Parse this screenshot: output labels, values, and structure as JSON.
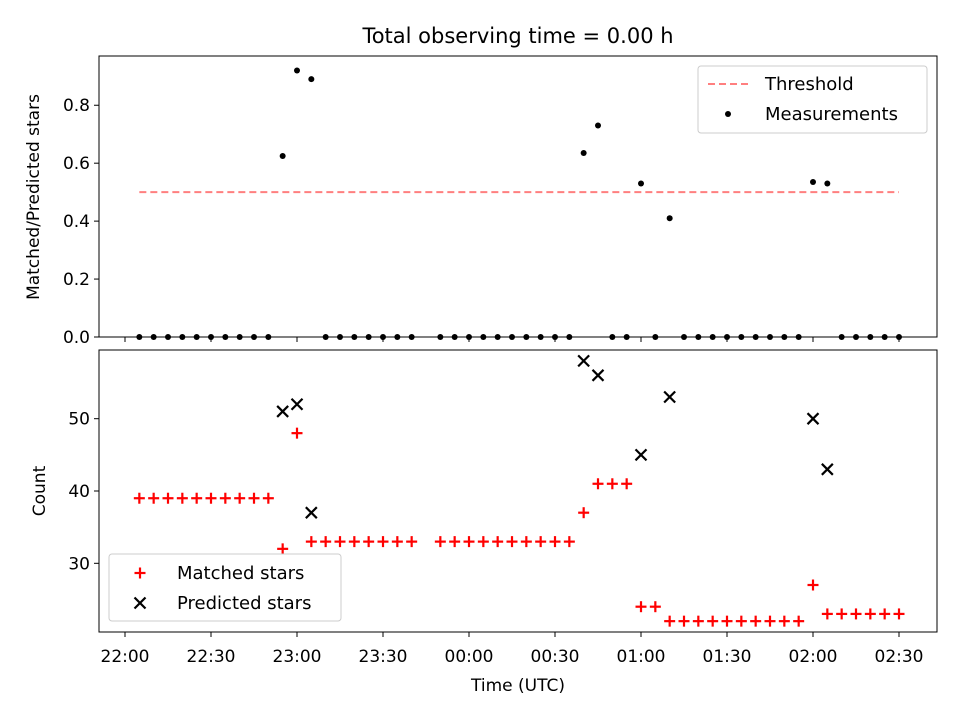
{
  "chart_data": [
    {
      "type": "scatter",
      "title": "Total observing time = 0.00 h",
      "xlabel": "",
      "ylabel": "Matched/Predicted stars",
      "ylim": [
        0,
        0.97
      ],
      "yticks": [
        "0.0",
        "0.2",
        "0.4",
        "0.6",
        "0.8"
      ],
      "legend_position": "upper right",
      "threshold": {
        "name": "Threshold",
        "value": 0.5,
        "x_start": "22:05",
        "x_end": "02:30",
        "color": "#ff7f7f"
      },
      "series": [
        {
          "name": "Measurements",
          "color": "#000000",
          "points": [
            [
              "22:05",
              0
            ],
            [
              "22:10",
              0
            ],
            [
              "22:15",
              0
            ],
            [
              "22:20",
              0
            ],
            [
              "22:25",
              0
            ],
            [
              "22:30",
              0
            ],
            [
              "22:35",
              0
            ],
            [
              "22:40",
              0
            ],
            [
              "22:45",
              0
            ],
            [
              "22:50",
              0
            ],
            [
              "22:55",
              0.625
            ],
            [
              "23:00",
              0.92
            ],
            [
              "23:05",
              0.89
            ],
            [
              "23:10",
              0
            ],
            [
              "23:15",
              0
            ],
            [
              "23:20",
              0
            ],
            [
              "23:25",
              0
            ],
            [
              "23:30",
              0
            ],
            [
              "23:35",
              0
            ],
            [
              "23:40",
              0
            ],
            [
              "23:50",
              0
            ],
            [
              "23:55",
              0
            ],
            [
              "00:00",
              0
            ],
            [
              "00:05",
              0
            ],
            [
              "00:10",
              0
            ],
            [
              "00:15",
              0
            ],
            [
              "00:20",
              0
            ],
            [
              "00:25",
              0
            ],
            [
              "00:30",
              0
            ],
            [
              "00:35",
              0
            ],
            [
              "00:40",
              0.635
            ],
            [
              "00:45",
              0.73
            ],
            [
              "00:50",
              0
            ],
            [
              "00:55",
              0
            ],
            [
              "01:00",
              0.53
            ],
            [
              "01:05",
              0
            ],
            [
              "01:10",
              0.41
            ],
            [
              "01:15",
              0
            ],
            [
              "01:20",
              0
            ],
            [
              "01:25",
              0
            ],
            [
              "01:30",
              0
            ],
            [
              "01:35",
              0
            ],
            [
              "01:40",
              0
            ],
            [
              "01:45",
              0
            ],
            [
              "01:50",
              0
            ],
            [
              "01:55",
              0
            ],
            [
              "02:00",
              0.535
            ],
            [
              "02:05",
              0.53
            ],
            [
              "02:10",
              0
            ],
            [
              "02:15",
              0
            ],
            [
              "02:20",
              0
            ],
            [
              "02:25",
              0
            ],
            [
              "02:30",
              0
            ]
          ]
        }
      ]
    },
    {
      "type": "scatter",
      "xlabel": "Time (UTC)",
      "ylabel": "Count",
      "ylim": [
        20.5,
        59.5
      ],
      "yticks": [
        "30",
        "40",
        "50"
      ],
      "xticks": [
        "22:00",
        "22:30",
        "23:00",
        "23:30",
        "00:00",
        "00:30",
        "01:00",
        "01:30",
        "02:00",
        "02:30"
      ],
      "legend_position": "lower left",
      "series": [
        {
          "name": "Matched stars",
          "marker": "plus",
          "color": "#ff0000",
          "points": [
            [
              "22:05",
              39
            ],
            [
              "22:10",
              39
            ],
            [
              "22:15",
              39
            ],
            [
              "22:20",
              39
            ],
            [
              "22:25",
              39
            ],
            [
              "22:30",
              39
            ],
            [
              "22:35",
              39
            ],
            [
              "22:40",
              39
            ],
            [
              "22:45",
              39
            ],
            [
              "22:50",
              39
            ],
            [
              "22:55",
              32
            ],
            [
              "23:00",
              48
            ],
            [
              "23:05",
              33
            ],
            [
              "23:10",
              33
            ],
            [
              "23:15",
              33
            ],
            [
              "23:20",
              33
            ],
            [
              "23:25",
              33
            ],
            [
              "23:30",
              33
            ],
            [
              "23:35",
              33
            ],
            [
              "23:40",
              33
            ],
            [
              "23:50",
              33
            ],
            [
              "23:55",
              33
            ],
            [
              "00:00",
              33
            ],
            [
              "00:05",
              33
            ],
            [
              "00:10",
              33
            ],
            [
              "00:15",
              33
            ],
            [
              "00:20",
              33
            ],
            [
              "00:25",
              33
            ],
            [
              "00:30",
              33
            ],
            [
              "00:35",
              33
            ],
            [
              "00:40",
              37
            ],
            [
              "00:45",
              41
            ],
            [
              "00:50",
              41
            ],
            [
              "00:55",
              41
            ],
            [
              "01:00",
              24
            ],
            [
              "01:05",
              24
            ],
            [
              "01:10",
              22
            ],
            [
              "01:15",
              22
            ],
            [
              "01:20",
              22
            ],
            [
              "01:25",
              22
            ],
            [
              "01:30",
              22
            ],
            [
              "01:35",
              22
            ],
            [
              "01:40",
              22
            ],
            [
              "01:45",
              22
            ],
            [
              "01:50",
              22
            ],
            [
              "01:55",
              22
            ],
            [
              "02:00",
              27
            ],
            [
              "02:05",
              23
            ],
            [
              "02:10",
              23
            ],
            [
              "02:15",
              23
            ],
            [
              "02:20",
              23
            ],
            [
              "02:25",
              23
            ],
            [
              "02:30",
              23
            ]
          ]
        },
        {
          "name": "Predicted stars",
          "marker": "x",
          "color": "#000000",
          "points": [
            [
              "22:55",
              51
            ],
            [
              "23:00",
              52
            ],
            [
              "23:05",
              37
            ],
            [
              "00:40",
              58
            ],
            [
              "00:45",
              56
            ],
            [
              "01:00",
              45
            ],
            [
              "01:10",
              53
            ],
            [
              "02:00",
              50
            ],
            [
              "02:05",
              43
            ]
          ]
        }
      ]
    }
  ]
}
